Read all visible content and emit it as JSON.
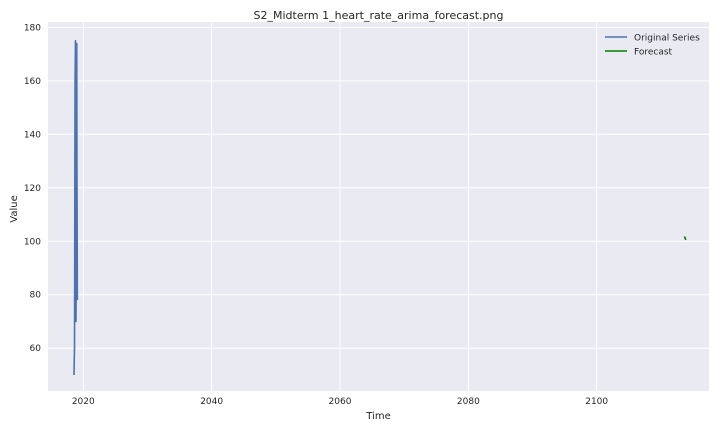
{
  "chart_data": {
    "type": "line",
    "title": "S2_Midterm 1_heart_rate_arima_forecast.png",
    "xlabel": "Time",
    "ylabel": "Value",
    "xlim": [
      2014.5,
      2117.5
    ],
    "ylim": [
      44,
      182
    ],
    "xticks": [
      2020,
      2040,
      2060,
      2080,
      2100
    ],
    "yticks": [
      60,
      80,
      100,
      120,
      140,
      160,
      180
    ],
    "grid": true,
    "legend_position": "top-right",
    "series": [
      {
        "name": "Original Series",
        "color": "#4c72b0",
        "x": [
          2018.55,
          2018.63,
          2018.66,
          2018.69,
          2018.72,
          2018.78,
          2018.8,
          2018.83,
          2018.86,
          2018.89,
          2018.92,
          2018.95,
          2018.98,
          2019.01,
          2019.04,
          2019.07
        ],
        "y": [
          50,
          60,
          88,
          130,
          160,
          175,
          150,
          90,
          70,
          82,
          128,
          160,
          174,
          128,
          108,
          78
        ]
      },
      {
        "name": "Forecast",
        "color": "#008000",
        "x": [
          2113.7,
          2113.77,
          2113.83,
          2113.9
        ],
        "y": [
          101.8,
          101.2,
          100.8,
          100.5
        ]
      }
    ]
  }
}
